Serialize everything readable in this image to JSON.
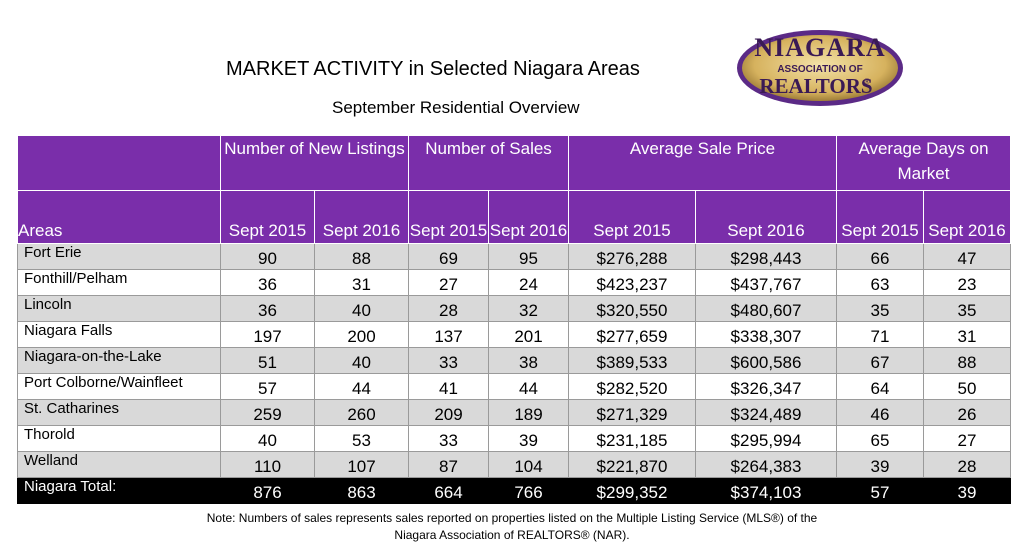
{
  "title": "MARKET ACTIVITY in Selected Niagara Areas",
  "subtitle": "September Residential Overview",
  "logo": {
    "line1": "NIAGARA",
    "line2": "ASSOCIATION OF",
    "line3": "REALTORS",
    "reg": "®",
    "colors": {
      "gold": "#c9a24a",
      "purple": "#5b2a86",
      "dark": "#3a1a55"
    }
  },
  "table": {
    "group_headers": [
      "Number of New Listings",
      "Number of Sales",
      "Average Sale Price",
      "Average Days on Market"
    ],
    "areas_header": "Areas",
    "sub_headers": [
      "Sept 2015",
      "Sept 2016",
      "Sept 2015",
      "Sept 2016",
      "Sept 2015",
      "Sept 2016",
      "Sept 2015",
      "Sept 2016"
    ],
    "rows": [
      {
        "area": "Fort Erie",
        "values": [
          "90",
          "88",
          "69",
          "95",
          "$276,288",
          "$298,443",
          "66",
          "47"
        ]
      },
      {
        "area": "Fonthill/Pelham",
        "values": [
          "36",
          "31",
          "27",
          "24",
          "$423,237",
          "$437,767",
          "63",
          "23"
        ]
      },
      {
        "area": "Lincoln",
        "values": [
          "36",
          "40",
          "28",
          "32",
          "$320,550",
          "$480,607",
          "35",
          "35"
        ]
      },
      {
        "area": "Niagara Falls",
        "values": [
          "197",
          "200",
          "137",
          "201",
          "$277,659",
          "$338,307",
          "71",
          "31"
        ]
      },
      {
        "area": "Niagara-on-the-Lake",
        "values": [
          "51",
          "40",
          "33",
          "38",
          "$389,533",
          "$600,586",
          "67",
          "88"
        ]
      },
      {
        "area": "Port Colborne/Wainfleet",
        "values": [
          "57",
          "44",
          "41",
          "44",
          "$282,520",
          "$326,347",
          "64",
          "50"
        ]
      },
      {
        "area": "St. Catharines",
        "values": [
          "259",
          "260",
          "209",
          "189",
          "$271,329",
          "$324,489",
          "46",
          "26"
        ]
      },
      {
        "area": "Thorold",
        "values": [
          "40",
          "53",
          "33",
          "39",
          "$231,185",
          "$295,994",
          "65",
          "27"
        ]
      },
      {
        "area": "Welland",
        "values": [
          "110",
          "107",
          "87",
          "104",
          "$221,870",
          "$264,383",
          "39",
          "28"
        ]
      }
    ],
    "total": {
      "area": "Niagara Total:",
      "values": [
        "876",
        "863",
        "664",
        "766",
        "$299,352",
        "$374,103",
        "57",
        "39"
      ]
    },
    "colors": {
      "header": "#7a2eaa",
      "row_alt": "#d9d9d9",
      "total": "#000000"
    }
  },
  "note": {
    "line1": "Note: Numbers of sales represents sales reported on properties listed on the Multiple Listing Service (MLS®) of the",
    "line2": "Niagara Association of REALTORS® (NAR)."
  }
}
